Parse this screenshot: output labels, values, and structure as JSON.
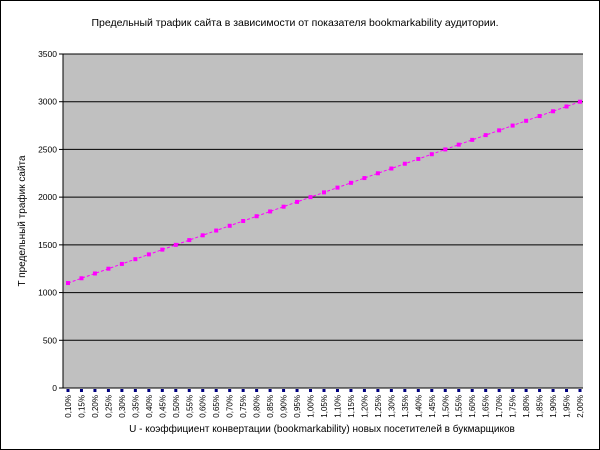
{
  "chart_data": {
    "type": "line",
    "title": "Предельный трафик сайта в зависимости от показателя bookmarkability аудитории.",
    "xlabel": "U - коэффициент конвертации (bookmarkability) новых посетителей в букмарщиков",
    "ylabel": "T   предельный трафик сайта",
    "ylim": [
      0,
      3500
    ],
    "yticks": [
      "0",
      "500",
      "1000",
      "1500",
      "2000",
      "2500",
      "3000",
      "3500"
    ],
    "ytick_values": [
      0,
      500,
      1000,
      1500,
      2000,
      2500,
      3000,
      3500
    ],
    "categories": [
      "0,10%",
      "0,15%",
      "0,20%",
      "0,25%",
      "0,30%",
      "0,35%",
      "0,40%",
      "0,45%",
      "0,50%",
      "0,55%",
      "0,60%",
      "0,65%",
      "0,70%",
      "0,75%",
      "0,80%",
      "0,85%",
      "0,90%",
      "0,95%",
      "1,00%",
      "1,05%",
      "1,10%",
      "1,15%",
      "1,20%",
      "1,25%",
      "1,30%",
      "1,35%",
      "1,40%",
      "1,45%",
      "1,50%",
      "1,55%",
      "1,60%",
      "1,65%",
      "1,70%",
      "1,75%",
      "1,80%",
      "1,85%",
      "1,90%",
      "1,95%",
      "2,00%"
    ],
    "series": [
      {
        "values": [
          1100,
          1150,
          1200,
          1250,
          1300,
          1350,
          1400,
          1450,
          1500,
          1550,
          1600,
          1650,
          1700,
          1750,
          1800,
          1850,
          1900,
          1950,
          2000,
          2050,
          2100,
          2150,
          2200,
          2250,
          2300,
          2350,
          2400,
          2450,
          2500,
          2550,
          2600,
          2650,
          2700,
          2750,
          2800,
          2850,
          2900,
          2950,
          3000
        ],
        "color": "#ff00ff"
      }
    ],
    "grid": true,
    "legend": "none",
    "plot_background": "#c0c0c0",
    "gridline_color": "#000000",
    "xtick_marker_color": "#000080"
  }
}
